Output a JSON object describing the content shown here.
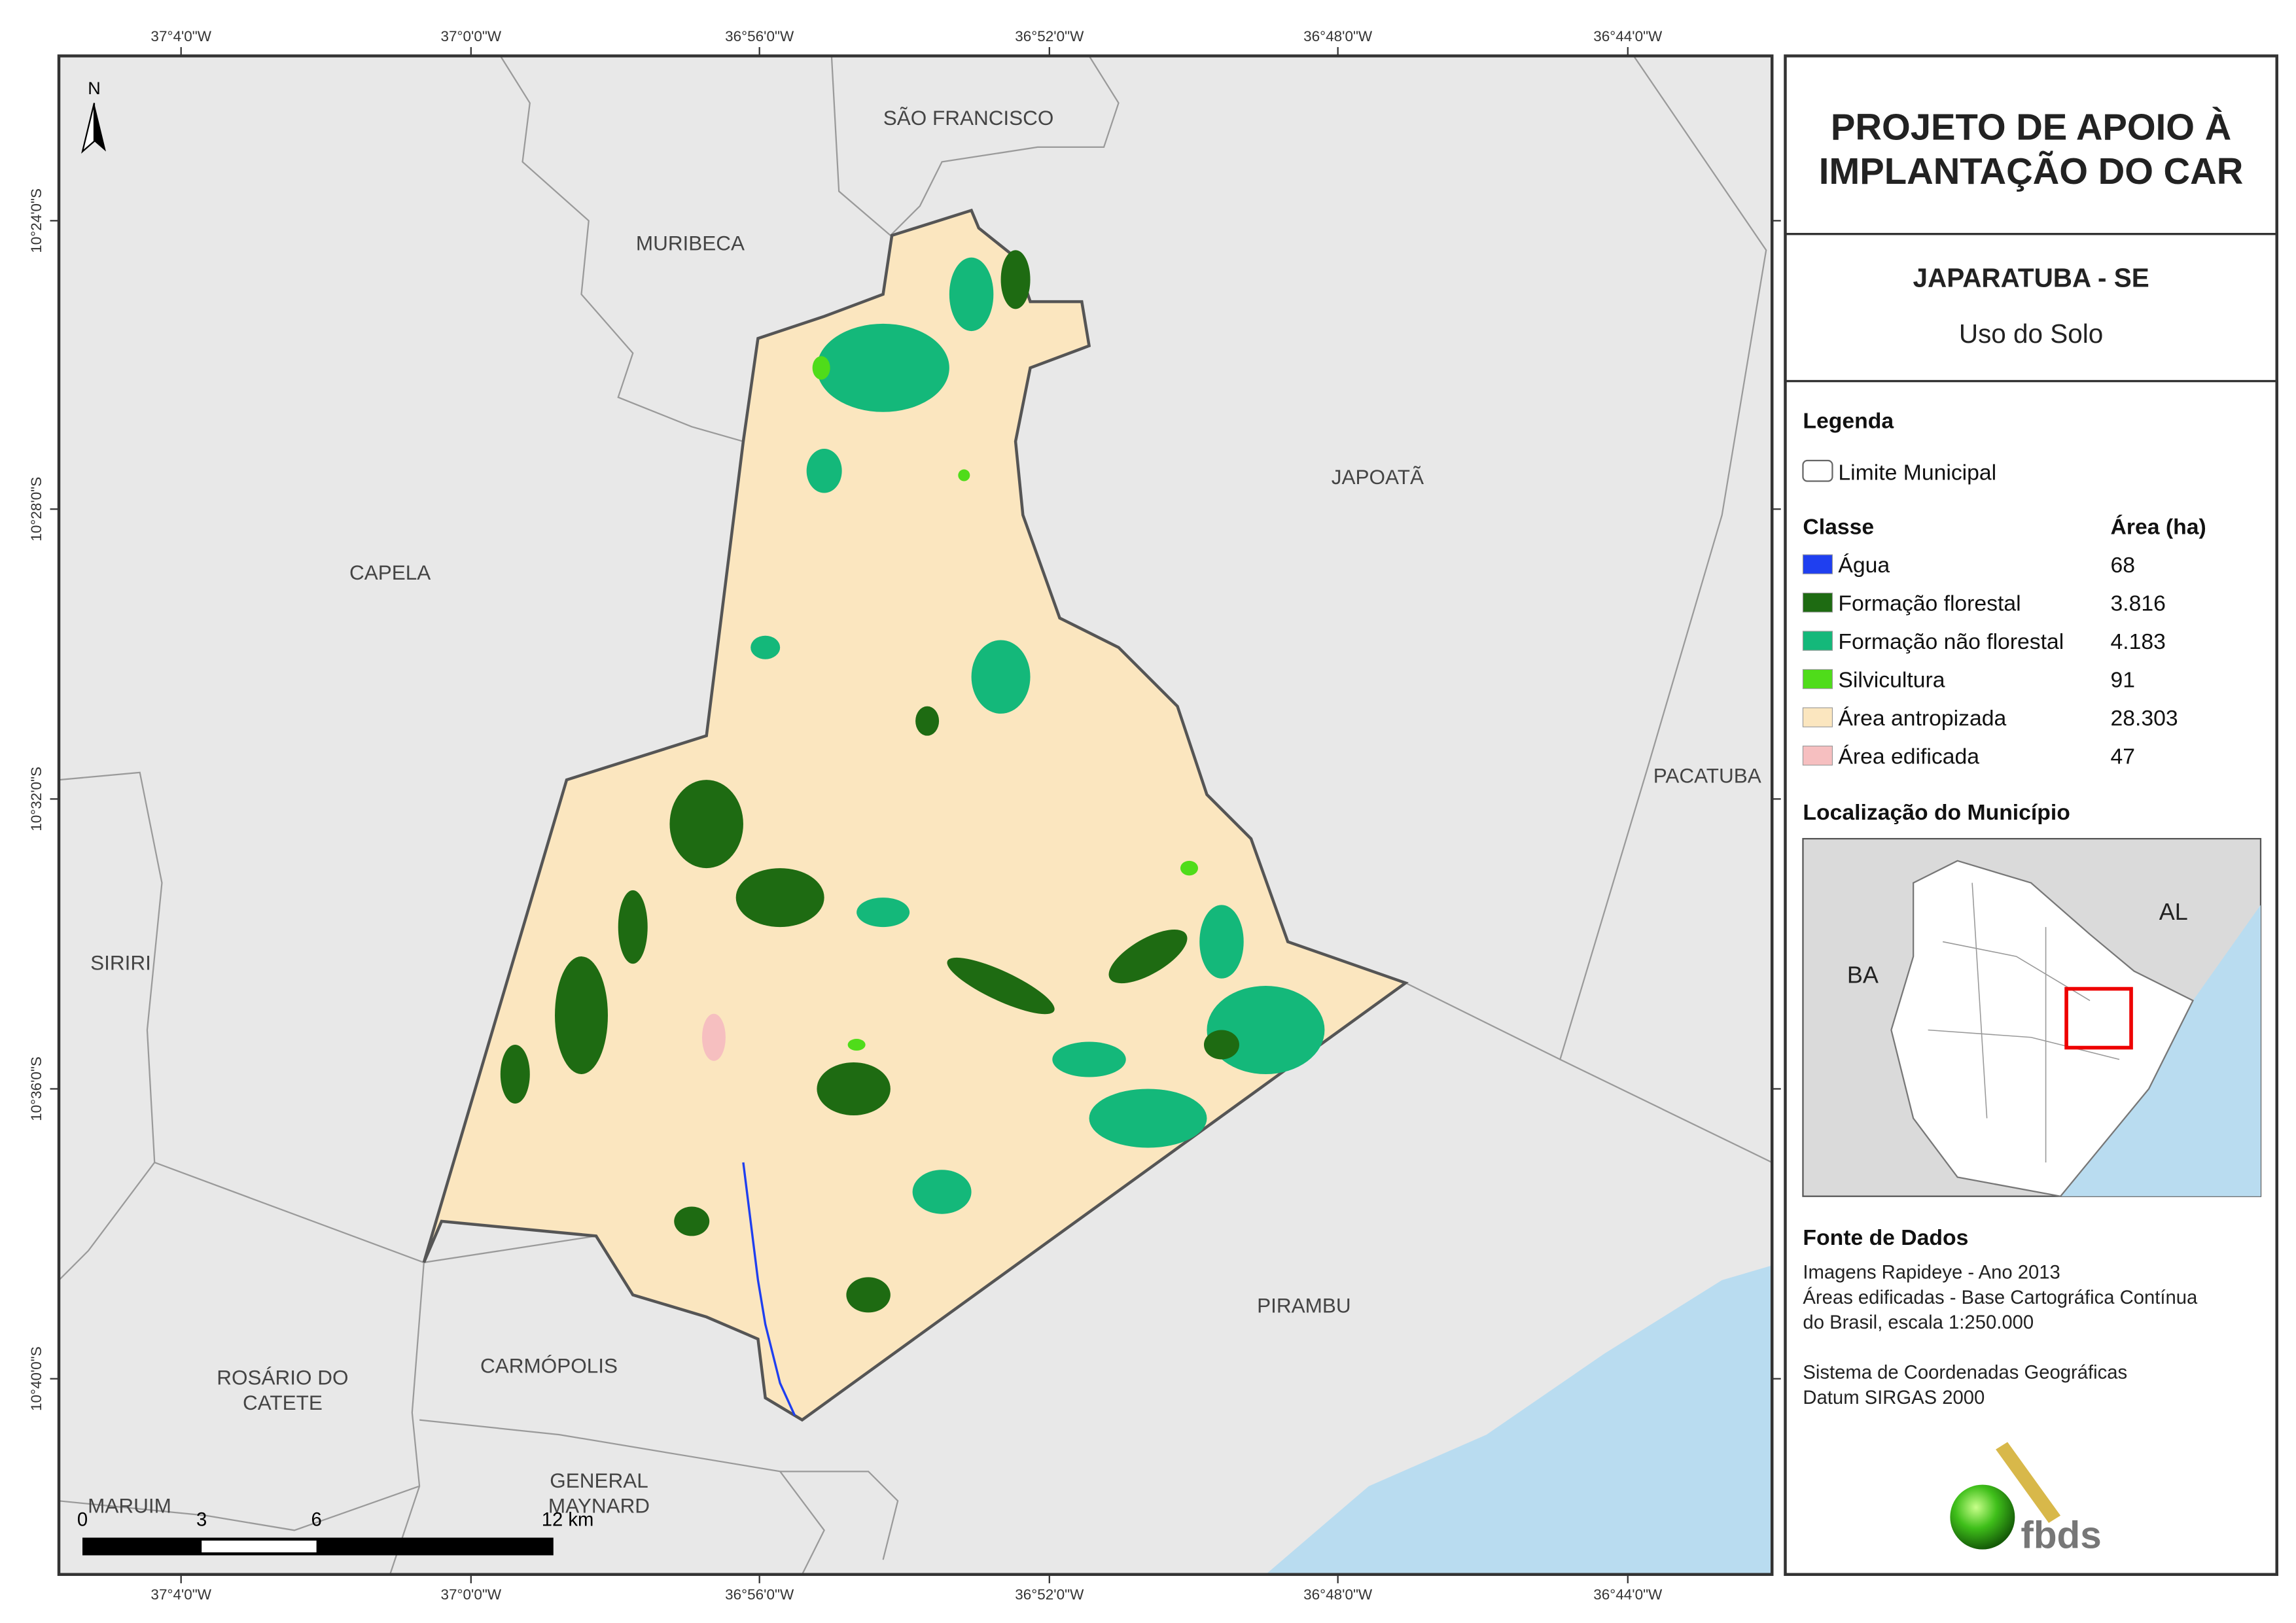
{
  "map": {
    "longitude_labels": [
      "37°4'0\"W",
      "37°0'0\"W",
      "36°56'0\"W",
      "36°52'0\"W",
      "36°48'0\"W",
      "36°44'0\"W"
    ],
    "latitude_labels": [
      "10°24'0\"S",
      "10°28'0\"S",
      "10°32'0\"S",
      "10°36'0\"S",
      "10°40'0\"S"
    ],
    "north": "N",
    "municipalities": [
      [
        "SÃO FRANCISCO"
      ],
      [
        "MURIBECA"
      ],
      [
        "JAPOATÃ"
      ],
      [
        "CAPELA"
      ],
      [
        "PACATUBA"
      ],
      [
        "SIRIRI"
      ],
      [
        "PIRAMBU"
      ],
      [
        "CARMÓPOLIS"
      ],
      [
        "ROSÁRIO DO",
        "CATETE"
      ],
      [
        "GENERAL",
        "MAYNARD"
      ],
      [
        "MARUIM"
      ]
    ],
    "scale_labels": [
      "0",
      "3",
      "6",
      "12 km"
    ]
  },
  "panel": {
    "title": [
      "PROJETO DE APOIO À",
      "IMPLANTAÇÃO DO CAR"
    ],
    "municipality": "JAPARATUBA - SE",
    "theme": "Uso do Solo",
    "legend_title": "Legenda",
    "boundary_label": "Limite Municipal",
    "class_header": "Classe",
    "area_header": "Área (ha)",
    "classes": [
      {
        "name": "Água",
        "area": "68",
        "color": "#1f3ff0"
      },
      {
        "name": "Formação florestal",
        "area": "3.816",
        "color": "#1e6b12"
      },
      {
        "name": "Formação não florestal",
        "area": "4.183",
        "color": "#14b87a"
      },
      {
        "name": "Silvicultura",
        "area": "91",
        "color": "#4fdc1a"
      },
      {
        "name": "Área antropizada",
        "area": "28.303",
        "color": "#fbe6bf"
      },
      {
        "name": "Área edificada",
        "area": "47",
        "color": "#f6bfc0"
      }
    ],
    "location_title": "Localização do Município",
    "inset_labels": [
      "AL",
      "BA"
    ],
    "source_title": "Fonte de Dados",
    "source_lines": [
      "Imagens Rapideye - Ano 2013",
      "Áreas edificadas - Base Cartográfica Contínua",
      "do Brasil, escala 1:250.000",
      "",
      "Sistema de Coordenadas Geográficas",
      "Datum SIRGAS 2000"
    ],
    "logo": "fbds"
  }
}
